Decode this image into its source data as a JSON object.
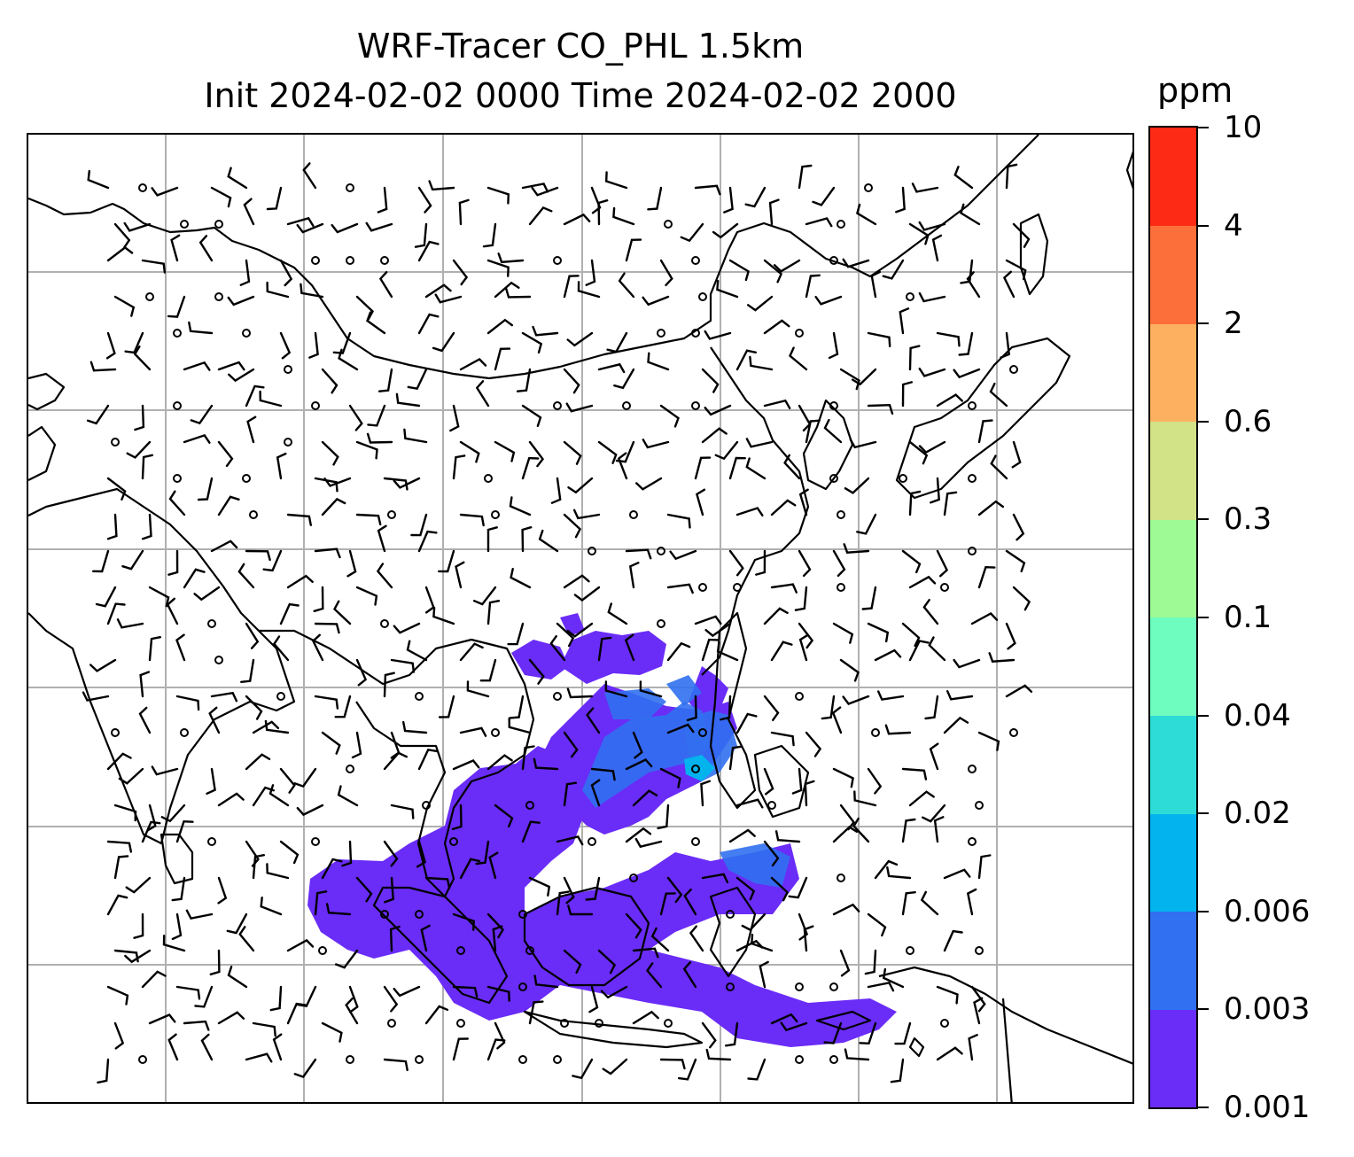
{
  "title": {
    "line1": "WRF-Tracer CO_PHL 1.5km",
    "line2": "Init 2024-02-02 0000 Time 2024-02-02 2000"
  },
  "colorbar": {
    "unit": "ppm",
    "ticks": [
      "0.001",
      "0.003",
      "0.006",
      "0.02",
      "0.04",
      "0.1",
      "0.3",
      "0.6",
      "2",
      "4",
      "10"
    ],
    "colors": [
      "#6a2cf7",
      "#3170f0",
      "#03b3ee",
      "#2ddcd6",
      "#6efdbe",
      "#9efa95",
      "#d1e287",
      "#fdb05f",
      "#fd6f3a",
      "#fd2a16"
    ]
  },
  "map": {
    "style": {
      "coastline_color": "#000000",
      "grid_color": "#b0b0b0",
      "barb_color": "#000000",
      "land_fill": "none"
    }
  }
}
